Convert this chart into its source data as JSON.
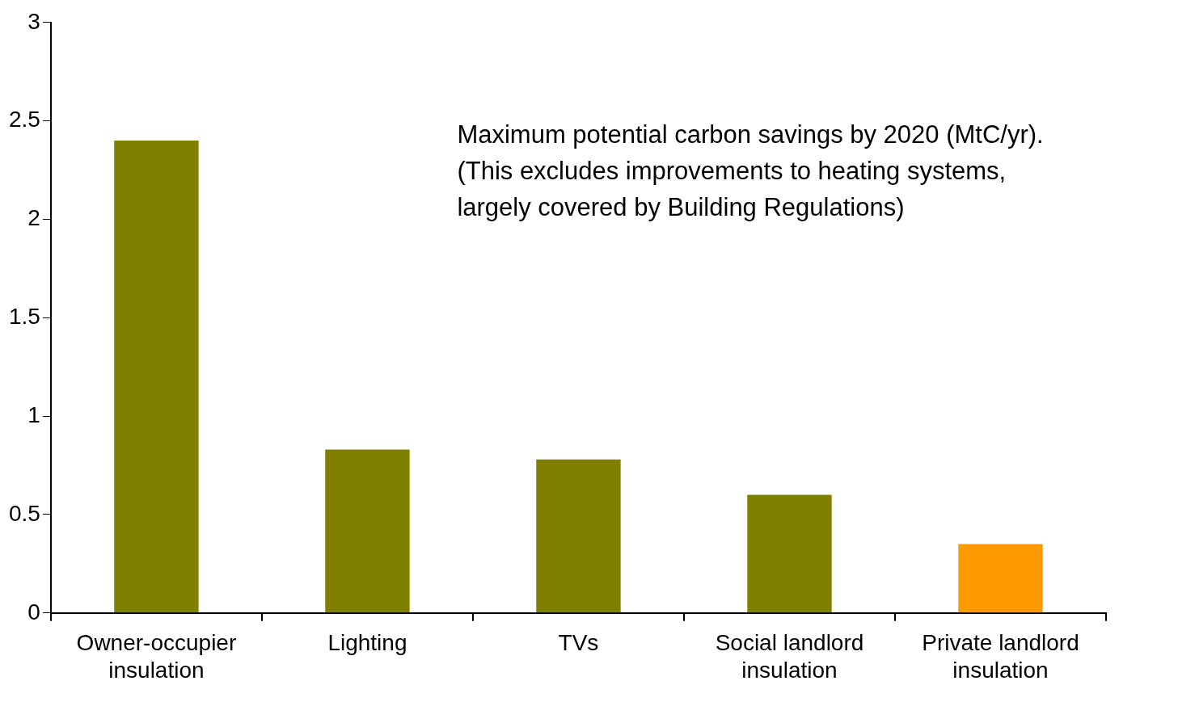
{
  "chart_data": {
    "type": "bar",
    "categories": [
      "Owner-occupier insulation",
      "Lighting",
      "TVs",
      "Social landlord insulation",
      "Private landlord insulation"
    ],
    "values": [
      2.4,
      0.83,
      0.78,
      0.6,
      0.35
    ],
    "colors": [
      "#808000",
      "#808000",
      "#808000",
      "#808000",
      "#ff9900"
    ],
    "ylim": [
      0,
      3
    ],
    "yticks": [
      0,
      0.5,
      1,
      1.5,
      2,
      2.5,
      3
    ],
    "legend": false,
    "annotations": [
      "Maximum potential carbon savings by 2020 (MtC/yr).\n(This excludes improvements to heating systems,\nlargely covered by Building Regulations)"
    ]
  }
}
